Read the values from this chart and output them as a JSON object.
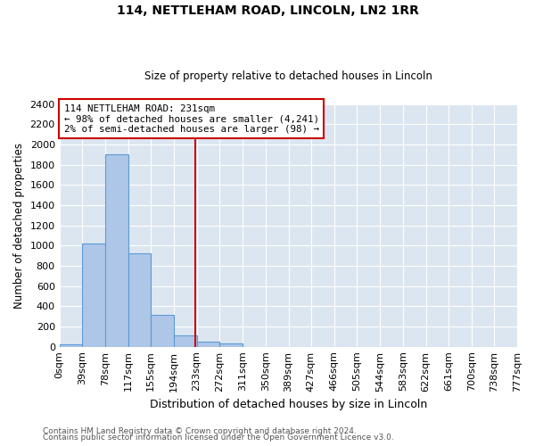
{
  "title": "114, NETTLEHAM ROAD, LINCOLN, LN2 1RR",
  "subtitle": "Size of property relative to detached houses in Lincoln",
  "xlabel": "Distribution of detached houses by size in Lincoln",
  "ylabel": "Number of detached properties",
  "bin_edges": [
    0,
    39,
    78,
    117,
    155,
    194,
    233,
    272,
    311,
    350,
    389,
    427,
    466,
    505,
    544,
    583,
    622,
    661,
    700,
    738,
    777
  ],
  "bin_labels": [
    "0sqm",
    "39sqm",
    "78sqm",
    "117sqm",
    "155sqm",
    "194sqm",
    "233sqm",
    "272sqm",
    "311sqm",
    "350sqm",
    "389sqm",
    "427sqm",
    "466sqm",
    "505sqm",
    "544sqm",
    "583sqm",
    "622sqm",
    "661sqm",
    "700sqm",
    "738sqm",
    "777sqm"
  ],
  "counts": [
    20,
    1020,
    1900,
    920,
    315,
    110,
    50,
    35,
    0,
    0,
    0,
    0,
    0,
    0,
    0,
    0,
    0,
    0,
    0,
    0
  ],
  "bar_color": "#aec6e8",
  "bar_edge_color": "#5b9bd5",
  "property_line_x": 231,
  "property_line_color": "#cc0000",
  "annotation_line1": "114 NETTLEHAM ROAD: 231sqm",
  "annotation_line2": "← 98% of detached houses are smaller (4,241)",
  "annotation_line3": "2% of semi-detached houses are larger (98) →",
  "annotation_box_color": "#ffffff",
  "annotation_box_edge": "#cc0000",
  "ylim": [
    0,
    2400
  ],
  "yticks": [
    0,
    200,
    400,
    600,
    800,
    1000,
    1200,
    1400,
    1600,
    1800,
    2000,
    2200,
    2400
  ],
  "plot_bg_color": "#dce6f1",
  "fig_bg_color": "#ffffff",
  "grid_color": "#ffffff",
  "footer_line1": "Contains HM Land Registry data © Crown copyright and database right 2024.",
  "footer_line2": "Contains public sector information licensed under the Open Government Licence v3.0."
}
